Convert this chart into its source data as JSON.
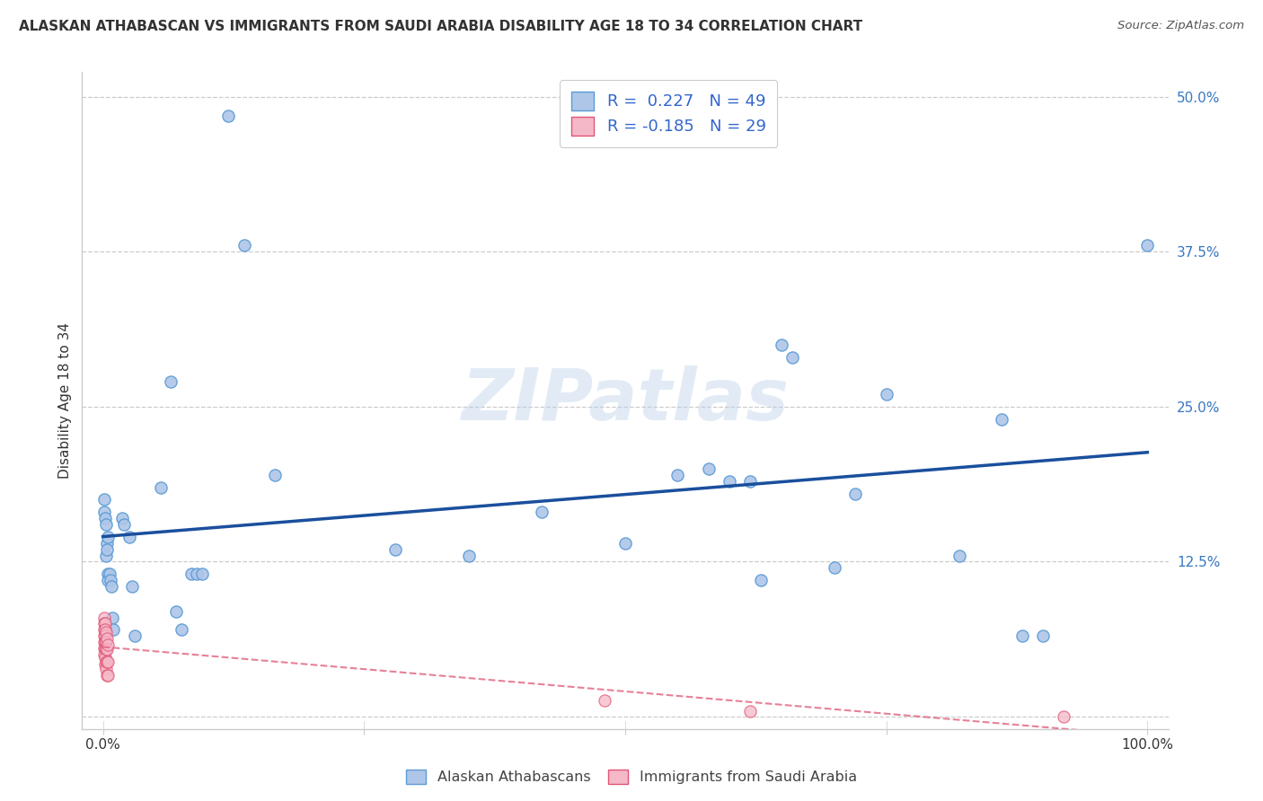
{
  "title": "ALASKAN ATHABASCAN VS IMMIGRANTS FROM SAUDI ARABIA DISABILITY AGE 18 TO 34 CORRELATION CHART",
  "source": "Source: ZipAtlas.com",
  "ylabel": "Disability Age 18 to 34",
  "watermark": "ZIPatlas",
  "blue_R": 0.227,
  "blue_N": 49,
  "pink_R": -0.185,
  "pink_N": 29,
  "blue_points": [
    [
      0.001,
      0.175
    ],
    [
      0.001,
      0.165
    ],
    [
      0.002,
      0.16
    ],
    [
      0.003,
      0.155
    ],
    [
      0.003,
      0.13
    ],
    [
      0.004,
      0.14
    ],
    [
      0.004,
      0.135
    ],
    [
      0.005,
      0.145
    ],
    [
      0.005,
      0.115
    ],
    [
      0.005,
      0.11
    ],
    [
      0.006,
      0.115
    ],
    [
      0.007,
      0.11
    ],
    [
      0.008,
      0.105
    ],
    [
      0.009,
      0.08
    ],
    [
      0.01,
      0.07
    ],
    [
      0.018,
      0.16
    ],
    [
      0.02,
      0.155
    ],
    [
      0.025,
      0.145
    ],
    [
      0.028,
      0.105
    ],
    [
      0.03,
      0.065
    ],
    [
      0.055,
      0.185
    ],
    [
      0.065,
      0.27
    ],
    [
      0.07,
      0.085
    ],
    [
      0.075,
      0.07
    ],
    [
      0.085,
      0.115
    ],
    [
      0.09,
      0.115
    ],
    [
      0.095,
      0.115
    ],
    [
      0.12,
      0.485
    ],
    [
      0.135,
      0.38
    ],
    [
      0.165,
      0.195
    ],
    [
      0.28,
      0.135
    ],
    [
      0.35,
      0.13
    ],
    [
      0.42,
      0.165
    ],
    [
      0.5,
      0.14
    ],
    [
      0.55,
      0.195
    ],
    [
      0.58,
      0.2
    ],
    [
      0.6,
      0.19
    ],
    [
      0.62,
      0.19
    ],
    [
      0.63,
      0.11
    ],
    [
      0.65,
      0.3
    ],
    [
      0.66,
      0.29
    ],
    [
      0.7,
      0.12
    ],
    [
      0.72,
      0.18
    ],
    [
      0.75,
      0.26
    ],
    [
      0.82,
      0.13
    ],
    [
      0.86,
      0.24
    ],
    [
      0.88,
      0.065
    ],
    [
      0.9,
      0.065
    ],
    [
      1.0,
      0.38
    ]
  ],
  "pink_points": [
    [
      0.001,
      0.08
    ],
    [
      0.001,
      0.075
    ],
    [
      0.001,
      0.07
    ],
    [
      0.001,
      0.065
    ],
    [
      0.001,
      0.06
    ],
    [
      0.001,
      0.055
    ],
    [
      0.001,
      0.05
    ],
    [
      0.002,
      0.075
    ],
    [
      0.002,
      0.07
    ],
    [
      0.002,
      0.065
    ],
    [
      0.002,
      0.06
    ],
    [
      0.002,
      0.055
    ],
    [
      0.002,
      0.048
    ],
    [
      0.002,
      0.042
    ],
    [
      0.003,
      0.068
    ],
    [
      0.003,
      0.06
    ],
    [
      0.003,
      0.054
    ],
    [
      0.003,
      0.044
    ],
    [
      0.003,
      0.038
    ],
    [
      0.004,
      0.063
    ],
    [
      0.004,
      0.054
    ],
    [
      0.004,
      0.044
    ],
    [
      0.004,
      0.033
    ],
    [
      0.005,
      0.058
    ],
    [
      0.005,
      0.044
    ],
    [
      0.005,
      0.033
    ],
    [
      0.48,
      0.013
    ],
    [
      0.62,
      0.004
    ],
    [
      0.92,
      0.0
    ]
  ],
  "blue_color": "#aec6e8",
  "blue_edge": "#5b9bd5",
  "pink_color": "#f5b8c8",
  "pink_edge": "#e05575",
  "trend_blue": "#1a4f9c",
  "trend_pink": "#e05575",
  "bg_color": "#ffffff",
  "grid_color": "#cccccc",
  "xlim": [
    -0.02,
    1.02
  ],
  "ylim": [
    -0.01,
    0.52
  ],
  "xticks": [
    0.0,
    0.25,
    0.5,
    0.75,
    1.0
  ],
  "yticks": [
    0.0,
    0.125,
    0.25,
    0.375,
    0.5
  ],
  "marker_size": 90
}
